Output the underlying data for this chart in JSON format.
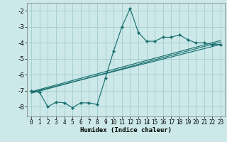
{
  "xlabel": "Humidex (Indice chaleur)",
  "bg_color": "#cce8e8",
  "grid_color": "#a8d0d0",
  "line_color": "#1a7070",
  "xlim": [
    -0.5,
    23.5
  ],
  "ylim": [
    -8.6,
    -1.5
  ],
  "yticks": [
    -8,
    -7,
    -6,
    -5,
    -4,
    -3,
    -2
  ],
  "xticks": [
    0,
    1,
    2,
    3,
    4,
    5,
    6,
    7,
    8,
    9,
    10,
    11,
    12,
    13,
    14,
    15,
    16,
    17,
    18,
    19,
    20,
    21,
    22,
    23
  ],
  "main_line_x": [
    0,
    1,
    2,
    3,
    4,
    5,
    6,
    7,
    8,
    9,
    10,
    11,
    12,
    13,
    14,
    15,
    16,
    17,
    18,
    19,
    20,
    21,
    22,
    23
  ],
  "main_line_y": [
    -7.0,
    -7.1,
    -8.0,
    -7.7,
    -7.75,
    -8.05,
    -7.75,
    -7.75,
    -7.85,
    -6.2,
    -4.5,
    -3.0,
    -1.85,
    -3.35,
    -3.9,
    -3.9,
    -3.65,
    -3.65,
    -3.5,
    -3.8,
    -4.0,
    -4.0,
    -4.1,
    -4.1
  ],
  "line2_x": [
    0,
    23
  ],
  "line2_y": [
    -7.05,
    -3.85
  ],
  "line3_x": [
    0,
    23
  ],
  "line3_y": [
    -7.15,
    -3.95
  ],
  "line4_x": [
    0,
    23
  ],
  "line4_y": [
    -7.1,
    -4.1
  ]
}
